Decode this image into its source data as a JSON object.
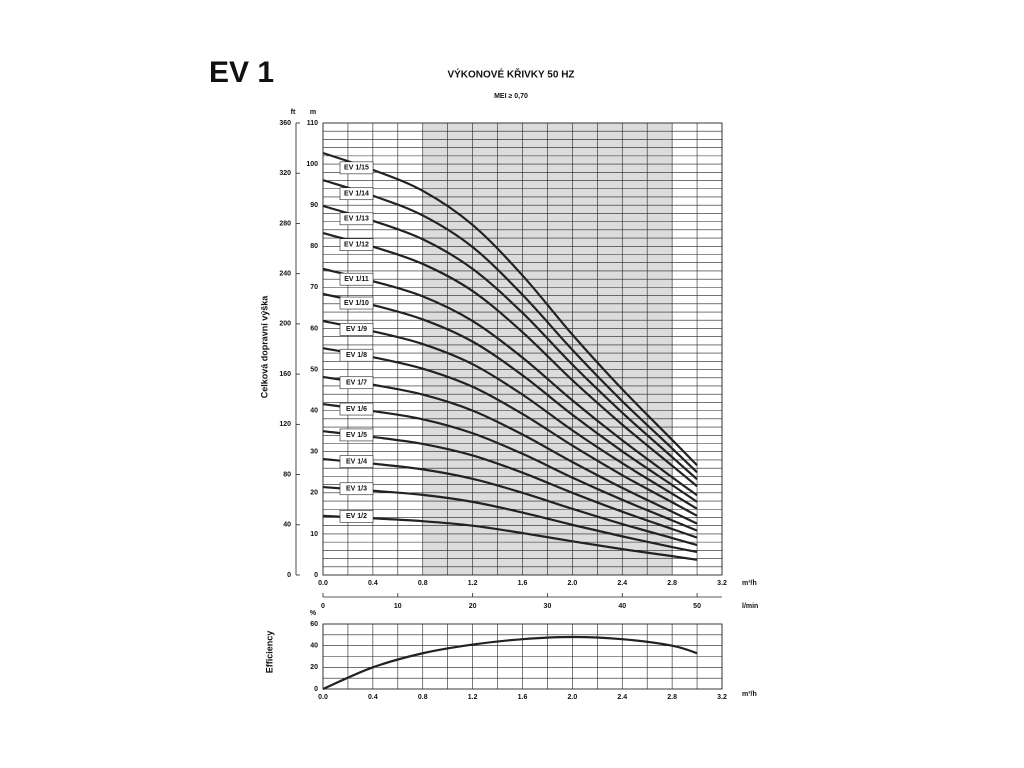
{
  "header": {
    "model": "EV 1"
  },
  "chart_data": [
    {
      "type": "line",
      "title": "VÝKONOVÉ KŘIVKY 50 HZ",
      "subtitle": "MEI ≥ 0,70",
      "y_label": "Celková dopravní výška",
      "y_unit": "m",
      "y_alt_unit": "ft",
      "x_unit": "m³/h",
      "x_alt_unit": "l/min",
      "x": [
        0,
        0.4,
        0.8,
        1.2,
        1.6,
        2.0,
        2.4,
        2.8,
        3.0
      ],
      "xlim": [
        0,
        3.2
      ],
      "xticks": [
        {
          "value": 0,
          "label": "0.0"
        },
        0.4,
        0.8,
        1.2,
        1.6,
        {
          "value": 2,
          "label": "2.0"
        },
        2.4,
        2.8,
        3.2
      ],
      "ylim": [
        0,
        110
      ],
      "yticks": [
        0,
        10,
        20,
        30,
        40,
        50,
        60,
        70,
        80,
        90,
        100,
        110
      ],
      "y_alt_lim": [
        0,
        360
      ],
      "y_alt_ticks": [
        0,
        40,
        80,
        120,
        160,
        200,
        240,
        280,
        320,
        360
      ],
      "x_alt_lim": [
        0,
        53.33
      ],
      "x_alt_ticks": [
        0,
        10,
        20,
        30,
        40,
        50
      ],
      "shaded_range": [
        0.8,
        2.8
      ],
      "grid": true,
      "series": [
        {
          "name": "EV 1/15",
          "color": "#222222",
          "values": [
            102.7,
            98.6,
            93.5,
            85.2,
            72.9,
            58.5,
            45.2,
            32.9,
            26.7
          ]
        },
        {
          "name": "EV 1/14",
          "color": "#222222",
          "values": [
            96.1,
            92.3,
            87.5,
            79.8,
            68.2,
            54.8,
            42.3,
            30.8,
            25.0
          ]
        },
        {
          "name": "EV 1/13",
          "color": "#222222",
          "values": [
            89.8,
            86.2,
            81.7,
            74.5,
            63.8,
            51.2,
            39.5,
            28.7,
            23.3
          ]
        },
        {
          "name": "EV 1/12",
          "color": "#222222",
          "values": [
            83.2,
            79.9,
            75.7,
            69.1,
            59.1,
            47.4,
            36.6,
            26.6,
            21.6
          ]
        },
        {
          "name": "EV 1/11",
          "color": "#222222",
          "values": [
            74.5,
            71.5,
            67.8,
            61.8,
            52.9,
            42.5,
            32.8,
            23.8,
            19.4
          ]
        },
        {
          "name": "EV 1/10",
          "color": "#222222",
          "values": [
            68.4,
            65.7,
            62.2,
            56.8,
            48.6,
            39.0,
            30.1,
            21.9,
            17.8
          ]
        },
        {
          "name": "EV 1/9",
          "color": "#222222",
          "values": [
            61.8,
            59.3,
            56.2,
            51.3,
            43.9,
            35.2,
            27.2,
            19.8,
            16.1
          ]
        },
        {
          "name": "EV 1/8",
          "color": "#222222",
          "values": [
            55.2,
            53.0,
            50.2,
            45.8,
            39.2,
            31.5,
            24.3,
            17.7,
            14.4
          ]
        },
        {
          "name": "EV 1/7",
          "color": "#222222",
          "values": [
            48.2,
            46.3,
            43.9,
            40.0,
            34.2,
            27.5,
            21.2,
            15.4,
            12.5
          ]
        },
        {
          "name": "EV 1/6",
          "color": "#222222",
          "values": [
            41.6,
            39.9,
            37.9,
            34.5,
            29.5,
            23.7,
            18.3,
            13.3,
            10.8
          ]
        },
        {
          "name": "EV 1/5",
          "color": "#222222",
          "values": [
            35.0,
            33.6,
            31.9,
            29.1,
            24.9,
            20.0,
            15.4,
            11.2,
            9.1
          ]
        },
        {
          "name": "EV 1/4",
          "color": "#222222",
          "values": [
            28.2,
            27.1,
            25.7,
            23.4,
            20.0,
            16.1,
            12.4,
            9.0,
            7.3
          ]
        },
        {
          "name": "EV 1/3",
          "color": "#222222",
          "values": [
            21.4,
            20.5,
            19.5,
            17.8,
            15.2,
            12.2,
            9.4,
            6.8,
            5.6
          ]
        },
        {
          "name": "EV 1/2",
          "color": "#222222",
          "values": [
            14.4,
            13.8,
            13.1,
            12.0,
            10.2,
            8.2,
            6.3,
            4.6,
            3.7
          ]
        }
      ]
    },
    {
      "type": "line",
      "y_label": "Efficiency",
      "y_unit": "%",
      "x_unit": "m³/h",
      "x": [
        0,
        0.4,
        0.8,
        1.2,
        1.6,
        2.0,
        2.4,
        2.8,
        3.0
      ],
      "xlim": [
        0,
        3.2
      ],
      "xticks": [
        {
          "value": 0,
          "label": "0.0"
        },
        0.4,
        0.8,
        1.2,
        1.6,
        {
          "value": 2,
          "label": "2.0"
        },
        2.4,
        2.8,
        3.2
      ],
      "ylim": [
        0,
        60
      ],
      "yticks": [
        0,
        20,
        40,
        60
      ],
      "grid": true,
      "series": [
        {
          "color": "#222222",
          "values": [
            0,
            20,
            33,
            41,
            46,
            48,
            46,
            40,
            33
          ]
        }
      ]
    }
  ]
}
